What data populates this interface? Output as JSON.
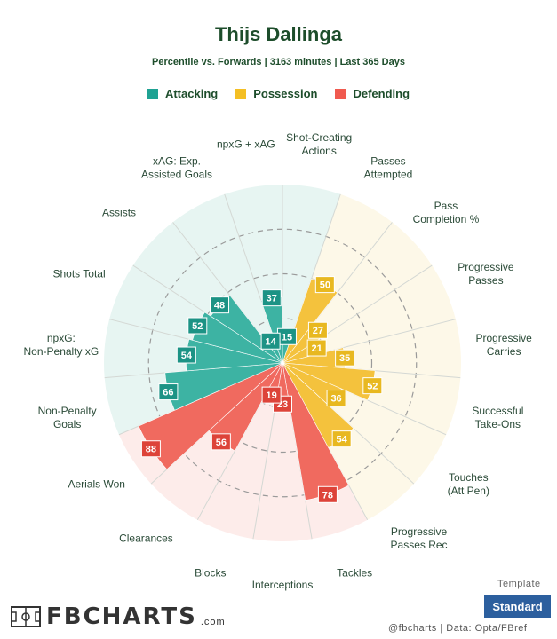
{
  "chart_data": {
    "type": "radar_bar",
    "title": "Thijs Dallinga",
    "subtitle": "Percentile vs. Forwards | 3163 minutes | Last 365 Days",
    "rmax": 100,
    "legend": [
      {
        "name": "Attacking",
        "color": "#1fa293"
      },
      {
        "name": "Possession",
        "color": "#f4bf24"
      },
      {
        "name": "Defending",
        "color": "#f05a4f"
      }
    ],
    "colors": {
      "Attacking": {
        "bar": "#3db3a3",
        "bg": "#e7f5f2",
        "badge": "#1c9385"
      },
      "Possession": {
        "bar": "#f4c23d",
        "bg": "#fdf8e8",
        "badge": "#e8b820"
      },
      "Defending": {
        "bar": "#f06a5f",
        "bg": "#fdecea",
        "badge": "#dd4339"
      }
    },
    "metrics": [
      {
        "label": "Shot-Creating Actions",
        "value": 15,
        "group": "Attacking"
      },
      {
        "label": "Passes Attempted",
        "value": 50,
        "group": "Possession"
      },
      {
        "label": "Pass Completion %",
        "value": 27,
        "group": "Possession"
      },
      {
        "label": "Progressive Passes",
        "value": 21,
        "group": "Possession"
      },
      {
        "label": "Progressive Carries",
        "value": 35,
        "group": "Possession"
      },
      {
        "label": "Successful Take-Ons",
        "value": 52,
        "group": "Possession"
      },
      {
        "label": "Touches (Att Pen)",
        "value": 36,
        "group": "Possession"
      },
      {
        "label": "Progressive Passes Rec",
        "value": 54,
        "group": "Possession"
      },
      {
        "label": "Tackles",
        "value": 78,
        "group": "Defending"
      },
      {
        "label": "Interceptions",
        "value": 23,
        "group": "Defending"
      },
      {
        "label": "Blocks",
        "value": 19,
        "group": "Defending"
      },
      {
        "label": "Clearances",
        "value": 56,
        "group": "Defending"
      },
      {
        "label": "Aerials Won",
        "value": 88,
        "group": "Defending"
      },
      {
        "label": "Non-Penalty Goals",
        "value": 66,
        "group": "Attacking"
      },
      {
        "label": "npxG: Non-Penalty xG",
        "value": 54,
        "group": "Attacking"
      },
      {
        "label": "Shots Total",
        "value": 52,
        "group": "Attacking"
      },
      {
        "label": "Assists",
        "value": 48,
        "group": "Attacking"
      },
      {
        "label": "xAG: Exp. Assisted Goals",
        "value": 14,
        "group": "Attacking"
      },
      {
        "label": "npxG + xAG",
        "value": 37,
        "group": "Attacking"
      }
    ]
  },
  "footer": {
    "template_label": "Template",
    "template_button": "Standard",
    "logo_text": "FBCHARTS",
    "logo_suffix": ".com",
    "credits": "@fbcharts | Data: Opta/FBref"
  }
}
